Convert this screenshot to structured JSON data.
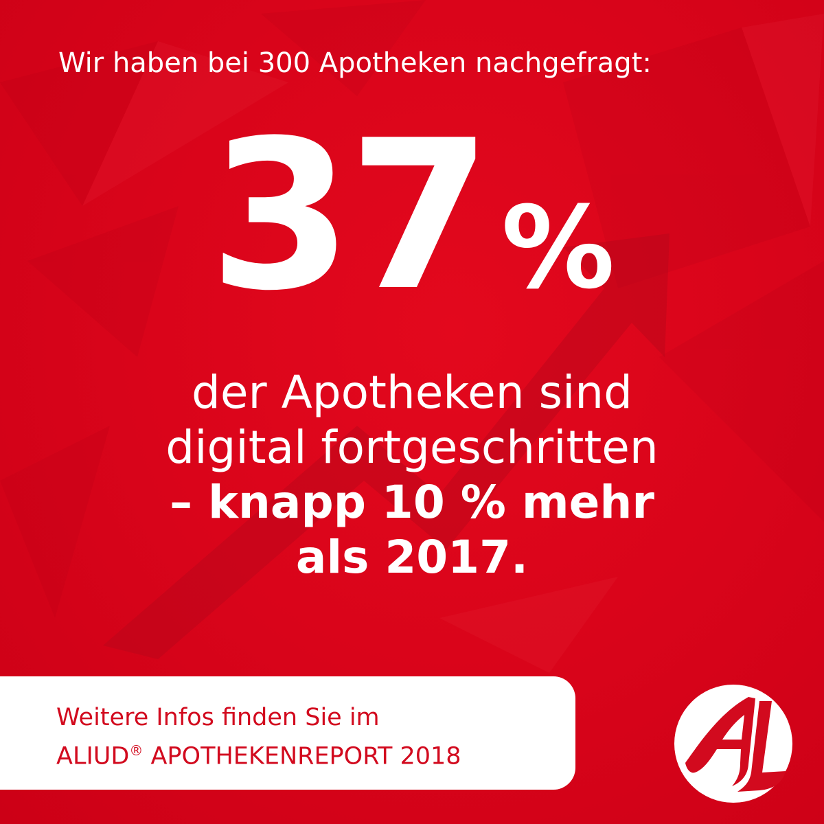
{
  "colors": {
    "background": "#d9041a",
    "text": "#ffffff",
    "cta_background": "#ffffff",
    "cta_text": "#d20a1e",
    "arrow": "#b5061a"
  },
  "intro": "Wir haben bei 300 Apotheken nachgefragt:",
  "headline": {
    "number": "37",
    "unit": "%"
  },
  "statement": {
    "line1": "der Apotheken sind",
    "line2": "digital fortgeschritten",
    "line3": "– knapp 10 % mehr",
    "line4": "als 2017."
  },
  "cta": {
    "line1": "Weitere Infos finden Sie im",
    "line2_prefix": "ALIUD",
    "line2_mark": "®",
    "line2_suffix": " APOTHEKENREPORT 2018"
  },
  "logo": {
    "icon": "aliud-al-logo",
    "letters": "AL"
  },
  "background_icon": "trend-up-arrow-icon"
}
